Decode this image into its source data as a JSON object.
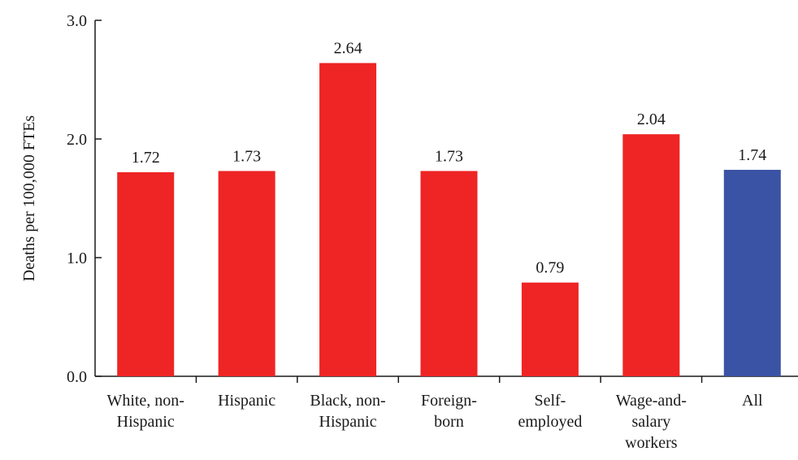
{
  "chart_data": {
    "type": "bar",
    "title": "",
    "xlabel": "",
    "ylabel": "Deaths per 100,000 FTEs",
    "ylim": [
      0,
      3.0
    ],
    "yticks": [
      {
        "value": 0,
        "label": "0.0"
      },
      {
        "value": 1,
        "label": "1.0"
      },
      {
        "value": 2,
        "label": "2.0"
      },
      {
        "value": 3,
        "label": "3.0"
      }
    ],
    "grid": false,
    "legend": "none",
    "categories": [
      [
        "White, non-",
        "Hispanic"
      ],
      [
        "Hispanic"
      ],
      [
        "Black, non-",
        "Hispanic"
      ],
      [
        "Foreign-",
        "born"
      ],
      [
        "Self-",
        "employed"
      ],
      [
        "Wage-and-",
        "salary",
        "workers"
      ],
      [
        "All"
      ]
    ],
    "values": [
      1.72,
      1.73,
      2.64,
      1.73,
      0.79,
      2.04,
      1.74
    ],
    "value_labels": [
      "1.72",
      "1.73",
      "2.64",
      "1.73",
      "0.79",
      "2.04",
      "1.74"
    ],
    "colors": [
      "#ee2524",
      "#ee2524",
      "#ee2524",
      "#ee2524",
      "#ee2524",
      "#ee2524",
      "#3a53a4"
    ]
  }
}
